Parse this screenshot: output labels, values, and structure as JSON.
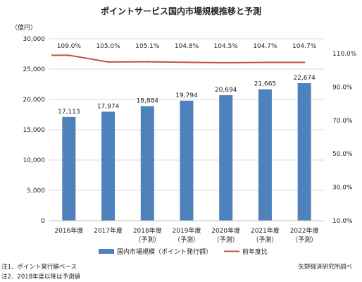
{
  "chart_data": {
    "type": "bar",
    "title": "ポイントサービス国内市場規模推移と予測",
    "y_unit_label": "（億円）",
    "categories": [
      [
        "2016年度",
        ""
      ],
      [
        "2017年度",
        ""
      ],
      [
        "2018年度",
        "（予測）"
      ],
      [
        "2019年度",
        "（予測）"
      ],
      [
        "2020年度",
        "（予測）"
      ],
      [
        "2021年度",
        "（予測）"
      ],
      [
        "2022年度",
        "（予測）"
      ]
    ],
    "series": [
      {
        "name": "国内市場規模（ポイント発行額）",
        "type": "bar",
        "axis": "left",
        "color": "#4f81bd",
        "values": [
          17113,
          17974,
          18884,
          19794,
          20694,
          21665,
          22674
        ],
        "labels": [
          "17,113",
          "17,974",
          "18,884",
          "19,794",
          "20,694",
          "21,665",
          "22,674"
        ]
      },
      {
        "name": "前年度比",
        "type": "line",
        "axis": "right",
        "color": "#c0504d",
        "values": [
          109.0,
          105.0,
          105.1,
          104.8,
          104.5,
          104.7,
          104.7
        ],
        "labels": [
          "109.0%",
          "105.0%",
          "105.1%",
          "104.8%",
          "104.5%",
          "104.7%",
          "104.7%"
        ]
      }
    ],
    "left_axis": {
      "min": 0,
      "max": 30000,
      "step": 5000,
      "tick_labels": [
        "0",
        "5,000",
        "10,000",
        "15,000",
        "20,000",
        "25,000",
        "30,000"
      ]
    },
    "right_axis": {
      "ticks": [
        10,
        30,
        50,
        70,
        90,
        110
      ],
      "tick_labels": [
        "10.0%",
        "30.0%",
        "50.0%",
        "70.0%",
        "90.0%",
        "110.0%"
      ],
      "min_value": 10,
      "max_value": 110
    },
    "grid": true,
    "legend_position": "bottom"
  },
  "notes": {
    "note1": "注1．ポイント発行額ベース",
    "note2": "注2．2018年度以降は予測値",
    "source": "矢野経済研究所調べ"
  }
}
